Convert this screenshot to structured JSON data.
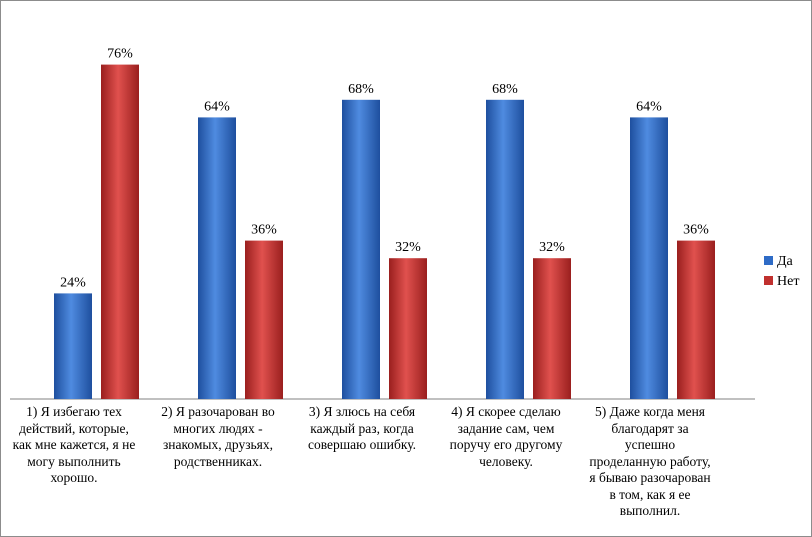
{
  "chart_data": {
    "type": "bar",
    "categories": [
      "1) Я избегаю тех действий, которые, как мне кажется, я не могу выполнить хорошо.",
      "2) Я разочарован во многих людях - знакомых, друзьях, родственниках.",
      "3) Я злюсь на себя каждый раз, когда совершаю ошибку.",
      "4) Я скорее сделаю задание сам, чем поручу его другому человеку.",
      "5) Даже когда меня благодарят за успешно проделанную работу, я бываю разочарован в том,  как я ее выполнил."
    ],
    "category_lines": [
      "1) Я избегаю тех\nдействий, которые,\nкак мне кажется, я не\nмогу выполнить\nхорошо.",
      "2) Я разочарован во\nмногих людях -\nзнакомых, друзьях,\nродственниках.",
      "3) Я злюсь на себя\nкаждый раз, когда\nсовершаю ошибку.",
      "4) Я скорее сделаю\nзадание сам, чем\nпоручу его другому\nчеловеку.",
      "5) Даже когда меня\nблагодарят за\nуспешно\nпроделанную работу,\nя бываю разочарован\nв том,  как я ее\nвыполнил."
    ],
    "series": [
      {
        "name": "Да",
        "values": [
          24,
          64,
          68,
          68,
          64
        ],
        "labels": [
          "24%",
          "64%",
          "68%",
          "68%",
          "64%"
        ],
        "color": "#2E6BC6"
      },
      {
        "name": "Нет",
        "values": [
          76,
          36,
          32,
          32,
          36
        ],
        "labels": [
          "76%",
          "36%",
          "32%",
          "32%",
          "36%"
        ],
        "color": "#C0302E"
      }
    ],
    "value_format": "percent",
    "ylim": [
      0,
      80
    ],
    "grid": false,
    "legend": "right",
    "title": "",
    "xlabel": "",
    "ylabel": ""
  }
}
